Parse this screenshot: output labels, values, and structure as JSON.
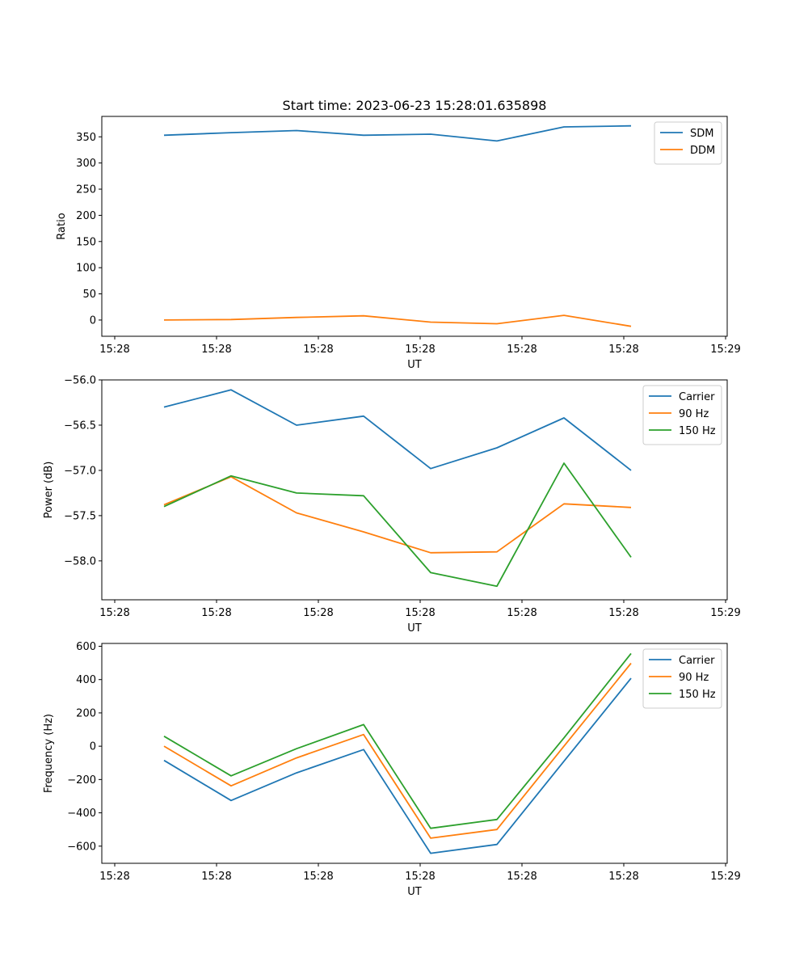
{
  "chart_data": [
    {
      "type": "line",
      "title": "Start time: 2023-06-23 15:28:01.635898",
      "xlabel": "UT",
      "ylabel": "Ratio",
      "x_ticks": [
        "15:28",
        "15:28",
        "15:28",
        "15:28",
        "15:28",
        "15:28",
        "15:29"
      ],
      "y_ticks": [
        0,
        50,
        100,
        150,
        200,
        250,
        300,
        350
      ],
      "ylim": [
        -31,
        389
      ],
      "legend": "top-right",
      "grid": false,
      "series": [
        {
          "name": "SDM",
          "color": "#1f77b4",
          "values": [
            353,
            358,
            362,
            353,
            355,
            342,
            369,
            371
          ]
        },
        {
          "name": "DDM",
          "color": "#ff7f0e",
          "values": [
            0,
            1,
            5,
            8,
            -4,
            -7,
            9,
            -12
          ]
        }
      ]
    },
    {
      "type": "line",
      "title": "",
      "xlabel": "UT",
      "ylabel": "Power (dB)",
      "x_ticks": [
        "15:28",
        "15:28",
        "15:28",
        "15:28",
        "15:28",
        "15:28",
        "15:29"
      ],
      "y_ticks": [
        -58.0,
        -57.5,
        -57.0,
        -56.5,
        -56.0
      ],
      "y_tick_labels": [
        "−58.0",
        "−57.5",
        "−57.0",
        "−56.5",
        "−56.0"
      ],
      "ylim": [
        -58.43,
        -56.0
      ],
      "legend": "top-right",
      "grid": false,
      "series": [
        {
          "name": "Carrier",
          "color": "#1f77b4",
          "values": [
            -56.3,
            -56.11,
            -56.5,
            -56.4,
            -56.98,
            -56.75,
            -56.42,
            -57.0
          ]
        },
        {
          "name": "90 Hz",
          "color": "#ff7f0e",
          "values": [
            -57.38,
            -57.07,
            -57.47,
            -57.68,
            -57.91,
            -57.9,
            -57.37,
            -57.41
          ]
        },
        {
          "name": "150 Hz",
          "color": "#2ca02c",
          "values": [
            -57.4,
            -57.06,
            -57.25,
            -57.28,
            -58.13,
            -58.28,
            -56.92,
            -57.96
          ]
        }
      ]
    },
    {
      "type": "line",
      "title": "",
      "xlabel": "UT",
      "ylabel": "Frequency (Hz)",
      "x_ticks": [
        "15:28",
        "15:28",
        "15:28",
        "15:28",
        "15:28",
        "15:28",
        "15:29"
      ],
      "y_ticks": [
        -600,
        -400,
        -200,
        0,
        200,
        400,
        600
      ],
      "y_tick_labels": [
        "−600",
        "−400",
        "−200",
        "0",
        "200",
        "400",
        "600"
      ],
      "ylim": [
        -703,
        617
      ],
      "legend": "top-right",
      "grid": false,
      "series": [
        {
          "name": "Carrier",
          "color": "#1f77b4",
          "values": [
            -85,
            -326,
            -160,
            -20,
            -643,
            -590,
            -90,
            408
          ]
        },
        {
          "name": "90 Hz",
          "color": "#ff7f0e",
          "values": [
            0,
            -238,
            -70,
            70,
            -552,
            -500,
            0,
            498
          ]
        },
        {
          "name": "150 Hz",
          "color": "#2ca02c",
          "values": [
            60,
            -178,
            -15,
            130,
            -493,
            -440,
            50,
            557
          ]
        }
      ]
    }
  ]
}
